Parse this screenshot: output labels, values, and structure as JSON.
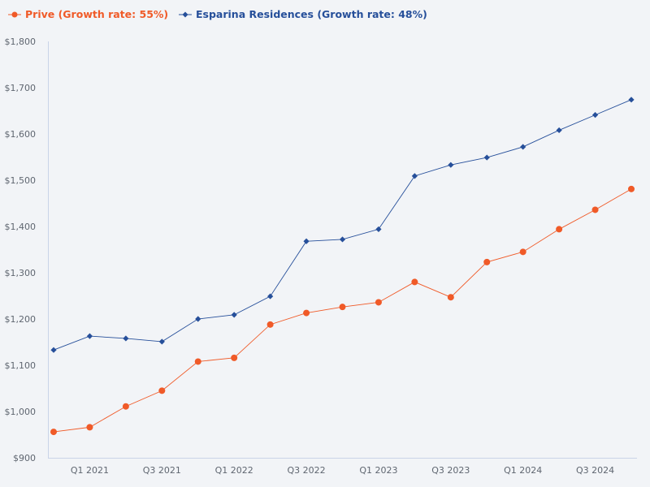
{
  "chart_data": {
    "type": "line",
    "title": "",
    "xlabel": "",
    "ylabel": "",
    "ylim": [
      900,
      1800
    ],
    "y_ticks": [
      900,
      1000,
      1100,
      1200,
      1300,
      1400,
      1500,
      1600,
      1700,
      1800
    ],
    "y_tick_labels": [
      "$900",
      "$1,000",
      "$1,100",
      "$1,200",
      "$1,300",
      "$1,400",
      "$1,500",
      "$1,600",
      "$1,700",
      "$1,800"
    ],
    "x_tick_labels": [
      {
        "label": "Q1 2021",
        "index": 1
      },
      {
        "label": "Q3 2021",
        "index": 3
      },
      {
        "label": "Q1 2022",
        "index": 5
      },
      {
        "label": "Q3 2022",
        "index": 7
      },
      {
        "label": "Q1 2023",
        "index": 9
      },
      {
        "label": "Q3 2023",
        "index": 11
      },
      {
        "label": "Q1 2024",
        "index": 13
      },
      {
        "label": "Q3 2024",
        "index": 15
      }
    ],
    "point_count": 17,
    "legend_position": "top-left",
    "series": [
      {
        "name": "Prive (Growth rate: 55%)",
        "color": "#f05a28",
        "marker": "circle",
        "values": [
          956,
          966,
          1011,
          1045,
          1108,
          1116,
          1188,
          1213,
          1226,
          1236,
          1280,
          1247,
          1323,
          1345,
          1394,
          1436,
          1481
        ]
      },
      {
        "name": "Esparina Residences (Growth rate: 48%)",
        "color": "#264f9a",
        "marker": "diamond",
        "values": [
          1133,
          1163,
          1158,
          1151,
          1200,
          1209,
          1249,
          1368,
          1372,
          1394,
          1509,
          1533,
          1549,
          1572,
          1608,
          1641,
          1674
        ]
      }
    ]
  }
}
